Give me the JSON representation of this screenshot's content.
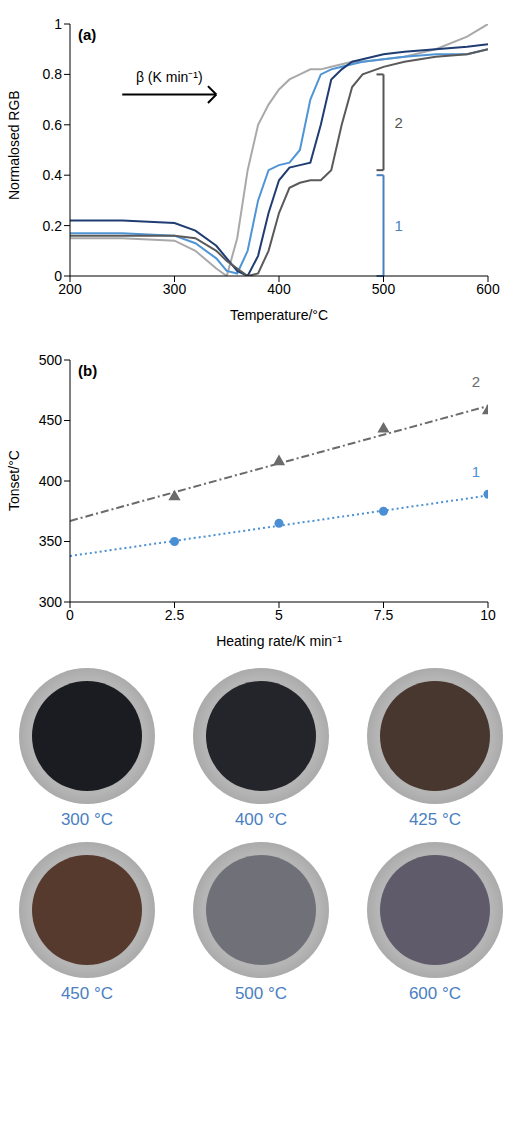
{
  "chart_data": [
    {
      "type": "line",
      "panel": "(a)",
      "x_label": "Temperature/°C",
      "y_label": "Normalosed RGB",
      "x": [
        200,
        250,
        300,
        320,
        340,
        350,
        360,
        370,
        380,
        390,
        400,
        410,
        420,
        430,
        440,
        450,
        460,
        470,
        480,
        500,
        520,
        550,
        580,
        600
      ],
      "series": [
        {
          "color": "#a9a9a9",
          "values": [
            0.15,
            0.15,
            0.14,
            0.1,
            0.03,
            0.0,
            0.15,
            0.42,
            0.6,
            0.68,
            0.74,
            0.78,
            0.8,
            0.82,
            0.82,
            0.83,
            0.84,
            0.85,
            0.85,
            0.86,
            0.87,
            0.9,
            0.95,
            1.0
          ]
        },
        {
          "color": "#4f95d6",
          "values": [
            0.17,
            0.17,
            0.16,
            0.13,
            0.07,
            0.02,
            0.01,
            0.1,
            0.3,
            0.42,
            0.44,
            0.45,
            0.5,
            0.7,
            0.8,
            0.82,
            0.83,
            0.84,
            0.85,
            0.86,
            0.87,
            0.88,
            0.88,
            0.9
          ]
        },
        {
          "color": "#1f3d73",
          "values": [
            0.22,
            0.22,
            0.21,
            0.18,
            0.12,
            0.07,
            0.02,
            0.0,
            0.08,
            0.25,
            0.38,
            0.43,
            0.44,
            0.45,
            0.6,
            0.78,
            0.82,
            0.85,
            0.86,
            0.88,
            0.89,
            0.9,
            0.91,
            0.92
          ]
        },
        {
          "color": "#5a5a5a",
          "values": [
            0.16,
            0.16,
            0.16,
            0.15,
            0.1,
            0.06,
            0.03,
            0.0,
            0.01,
            0.1,
            0.25,
            0.35,
            0.37,
            0.38,
            0.38,
            0.42,
            0.6,
            0.75,
            0.8,
            0.83,
            0.85,
            0.87,
            0.88,
            0.9
          ]
        }
      ],
      "xlim": [
        200,
        600
      ],
      "xticks": [
        200,
        300,
        400,
        500,
        600
      ],
      "ylim": [
        0,
        1
      ],
      "yticks": [
        0,
        0.2,
        0.4,
        0.6,
        0.8,
        1
      ],
      "annotations": [
        {
          "text": "β (K min⁻¹)",
          "x": [
            250,
            340
          ],
          "y": 0.72,
          "color": "#000000"
        }
      ],
      "brackets": [
        {
          "text": "1",
          "x": 500,
          "y": [
            0,
            0.4
          ],
          "color": "#4a7fc1"
        },
        {
          "text": "2",
          "x": 500,
          "y": [
            0.42,
            0.8
          ],
          "color": "#555555"
        }
      ]
    },
    {
      "type": "scatter",
      "panel": "(b)",
      "x_label": "Heating rate/K min⁻¹",
      "y_label": "Tonset/°C",
      "xlim": [
        0,
        10
      ],
      "xticks": [
        0,
        2.5,
        5,
        7.5,
        10
      ],
      "ylim": [
        300,
        500
      ],
      "yticks": [
        300,
        350,
        400,
        450,
        500
      ],
      "series": [
        {
          "name": "2",
          "color": "#6b6b6b",
          "marker": "triangle",
          "line_style": "dashdot",
          "x": [
            2.5,
            5,
            7.5,
            10
          ],
          "values": [
            387,
            416,
            443,
            458
          ],
          "fit": {
            "x": [
              0,
              10
            ],
            "values": [
              367,
              462
            ]
          }
        },
        {
          "name": "1",
          "color": "#4a8fd4",
          "marker": "circle",
          "line_style": "dotted",
          "x": [
            2.5,
            5,
            7.5,
            10
          ],
          "values": [
            350,
            365,
            375,
            389
          ],
          "fit": {
            "x": [
              0,
              10
            ],
            "values": [
              338,
              388
            ]
          }
        }
      ]
    }
  ],
  "samples": [
    {
      "label": "300 °C",
      "color": "#1b1b22"
    },
    {
      "label": "400 °C",
      "color": "#24242b"
    },
    {
      "label": "425 °C",
      "color": "#47372f"
    },
    {
      "label": "450 °C",
      "color": "#573a2e"
    },
    {
      "label": "500 °C",
      "color": "#707079"
    },
    {
      "label": "600 °C",
      "color": "#5f5b6b"
    }
  ],
  "sample_label_color": "#4a7fc1"
}
